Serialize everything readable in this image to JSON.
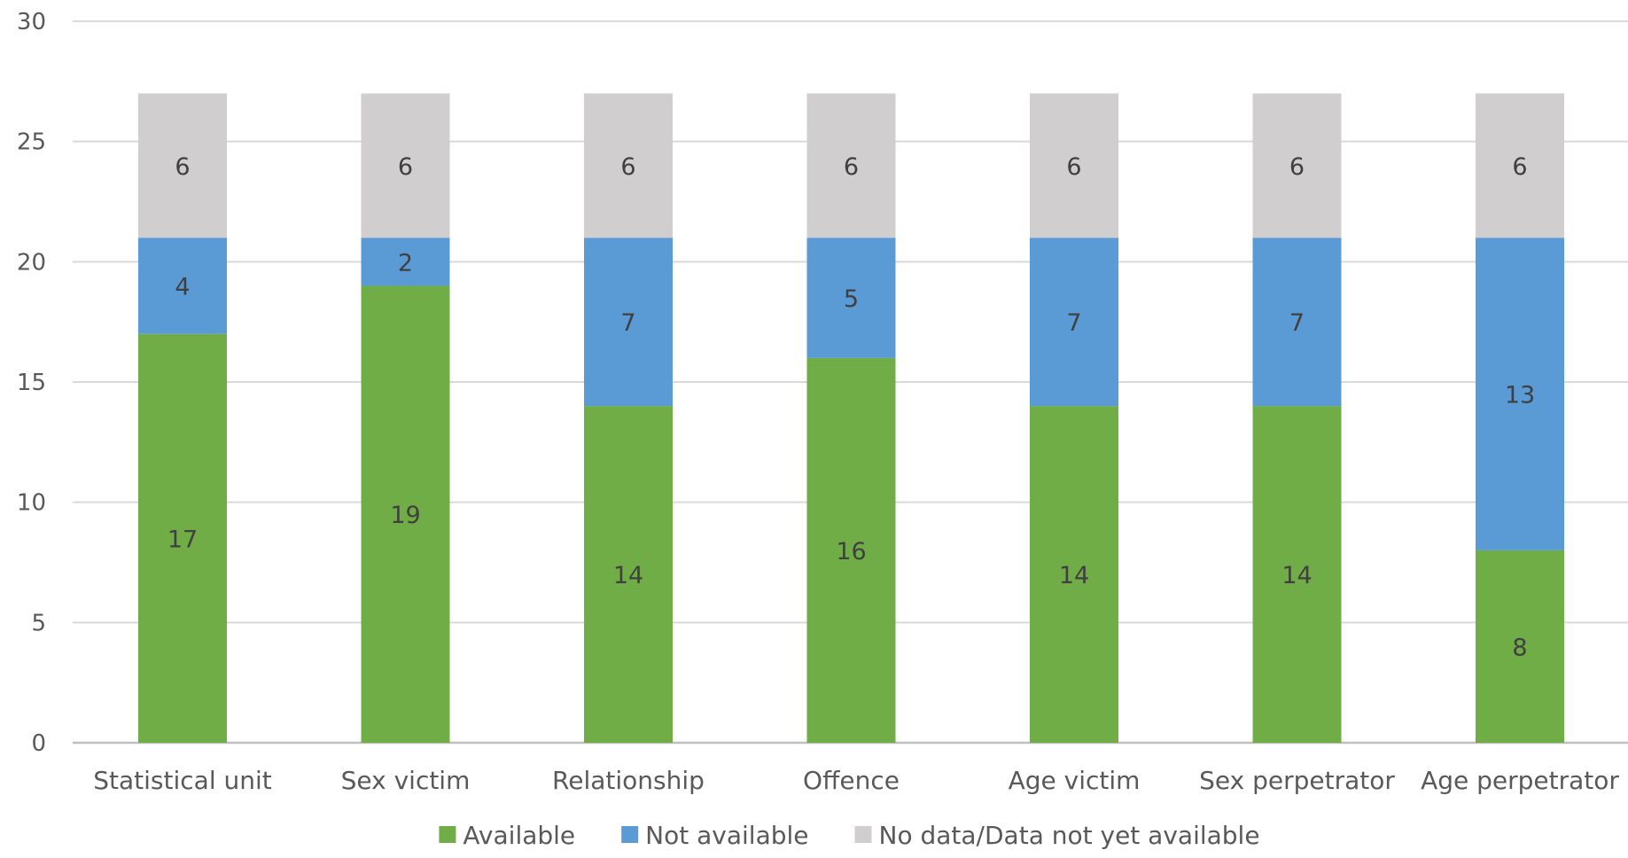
{
  "chart_data": {
    "type": "bar",
    "stacked": true,
    "categories": [
      "Statistical unit",
      "Sex victim",
      "Relationship",
      "Offence",
      "Age victim",
      "Sex perpetrator",
      "Age perpetrator"
    ],
    "series": [
      {
        "name": "Available",
        "color": "#70ad47",
        "values": [
          17,
          19,
          14,
          16,
          14,
          14,
          8
        ]
      },
      {
        "name": "Not available",
        "color": "#5b9bd5",
        "values": [
          4,
          2,
          7,
          5,
          7,
          7,
          13
        ]
      },
      {
        "name": "No data/Data not yet available",
        "color": "#d0cece",
        "values": [
          6,
          6,
          6,
          6,
          6,
          6,
          6
        ]
      }
    ],
    "ylim": [
      0,
      30
    ],
    "yticks": [
      0,
      5,
      10,
      15,
      20,
      25,
      30
    ],
    "grid": true,
    "legend_position": "bottom",
    "title": "",
    "xlabel": "",
    "ylabel": ""
  }
}
